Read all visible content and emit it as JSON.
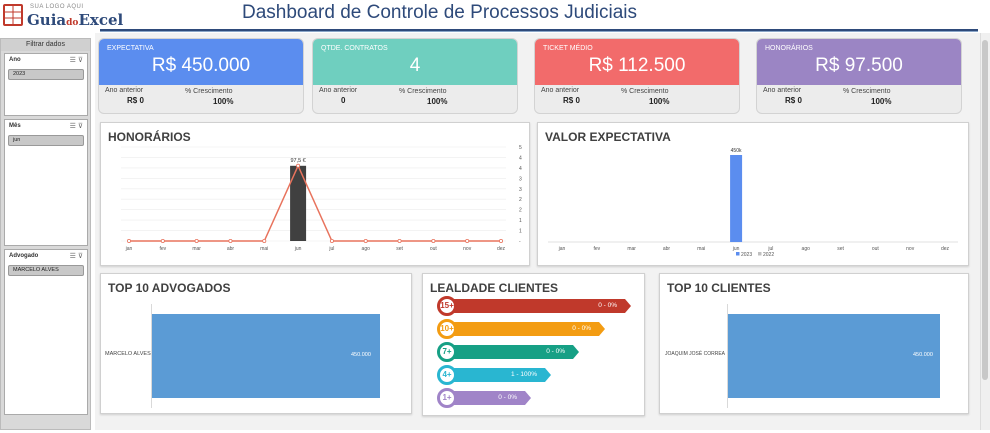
{
  "header": {
    "logo_small": "SUA LOGO AQUI",
    "logo_guia": "Guia",
    "logo_do": "do",
    "logo_excel": "Excel",
    "title": "Dashboard de Controle de Processos Judiciais"
  },
  "filters": {
    "header": "Filtrar dados",
    "slicers": [
      {
        "title": "Ano",
        "selected": "2023"
      },
      {
        "title": "Mês",
        "selected": "jun"
      },
      {
        "title": "Advogado",
        "selected": "MARCELO ALVES"
      }
    ]
  },
  "kpis": [
    {
      "label": "EXPECTATIVA",
      "value": "R$ 450.000",
      "prev_label": "Ano anterior",
      "prev_value": "R$ 0",
      "growth_label": "% Crescimento",
      "growth_value": "100%",
      "color": "#5b8def"
    },
    {
      "label": "QTDE. CONTRATOS",
      "value": "4",
      "prev_label": "Ano anterior",
      "prev_value": "0",
      "growth_label": "% Crescimento",
      "growth_value": "100%",
      "color": "#6fcfbf"
    },
    {
      "label": "TICKET MÉDIO",
      "value": "R$ 112.500",
      "prev_label": "Ano anterior",
      "prev_value": "R$ 0",
      "growth_label": "% Crescimento",
      "growth_value": "100%",
      "color": "#f26b6b"
    },
    {
      "label": "HONORÁRIOS",
      "value": "R$ 97.500",
      "prev_label": "Ano anterior",
      "prev_value": "R$ 0",
      "growth_label": "% Crescimento",
      "growth_value": "100%",
      "color": "#9b85c4"
    }
  ],
  "honorarios_chart": {
    "title": "HONORÁRIOS",
    "data_label": "97,5 €",
    "months": [
      "jan",
      "fev",
      "mar",
      "abr",
      "mai",
      "jun",
      "jul",
      "ago",
      "set",
      "out",
      "nov",
      "dez"
    ],
    "values": [
      0,
      0,
      0,
      0,
      0,
      4,
      0,
      0,
      0,
      0,
      0,
      0
    ],
    "y_ticks": [
      "5",
      "4",
      "4",
      "3",
      "3",
      "2",
      "2",
      "1",
      "1",
      "-"
    ],
    "bar_color": "#404040",
    "line_color": "#e8735d"
  },
  "chart_data": {
    "type": "bar",
    "title": "VALOR EXPECTATIVA",
    "categories": [
      "jan",
      "fev",
      "mar",
      "abr",
      "mai",
      "jun",
      "jul",
      "ago",
      "set",
      "out",
      "nov",
      "dez"
    ],
    "series": [
      {
        "name": "2023",
        "values": [
          0,
          0,
          0,
          0,
          0,
          450000,
          0,
          0,
          0,
          0,
          0,
          0
        ],
        "color": "#5b8def"
      },
      {
        "name": "2022",
        "values": [
          0,
          0,
          0,
          0,
          0,
          0,
          0,
          0,
          0,
          0,
          0,
          0
        ],
        "color": "#c0c0c0"
      }
    ],
    "data_label": "450k",
    "ylim": [
      0,
      450000
    ],
    "legend": "bottom"
  },
  "top_advogados": {
    "title": "TOP 10 ADVOGADOS",
    "rows": [
      {
        "name": "MARCELO ALVES",
        "value": "450.000"
      }
    ],
    "bar_color": "#5b9bd5"
  },
  "lealdade": {
    "title": "LEALDADE CLIENTES",
    "items": [
      {
        "badge": "15+",
        "text": "0 - 0%",
        "color": "#c0392b"
      },
      {
        "badge": "10+",
        "text": "0 - 0%",
        "color": "#f39c12"
      },
      {
        "badge": "7+",
        "text": "0 - 0%",
        "color": "#16a085"
      },
      {
        "badge": "4+",
        "text": "1 - 100%",
        "color": "#29b6d1"
      },
      {
        "badge": "1+",
        "text": "0 - 0%",
        "color": "#a084c8"
      }
    ]
  },
  "top_clientes": {
    "title": "TOP 10 CLIENTES",
    "rows": [
      {
        "name": "JOAQUIM JOSÉ CORREA",
        "value": "450.000"
      }
    ],
    "bar_color": "#5b9bd5"
  }
}
